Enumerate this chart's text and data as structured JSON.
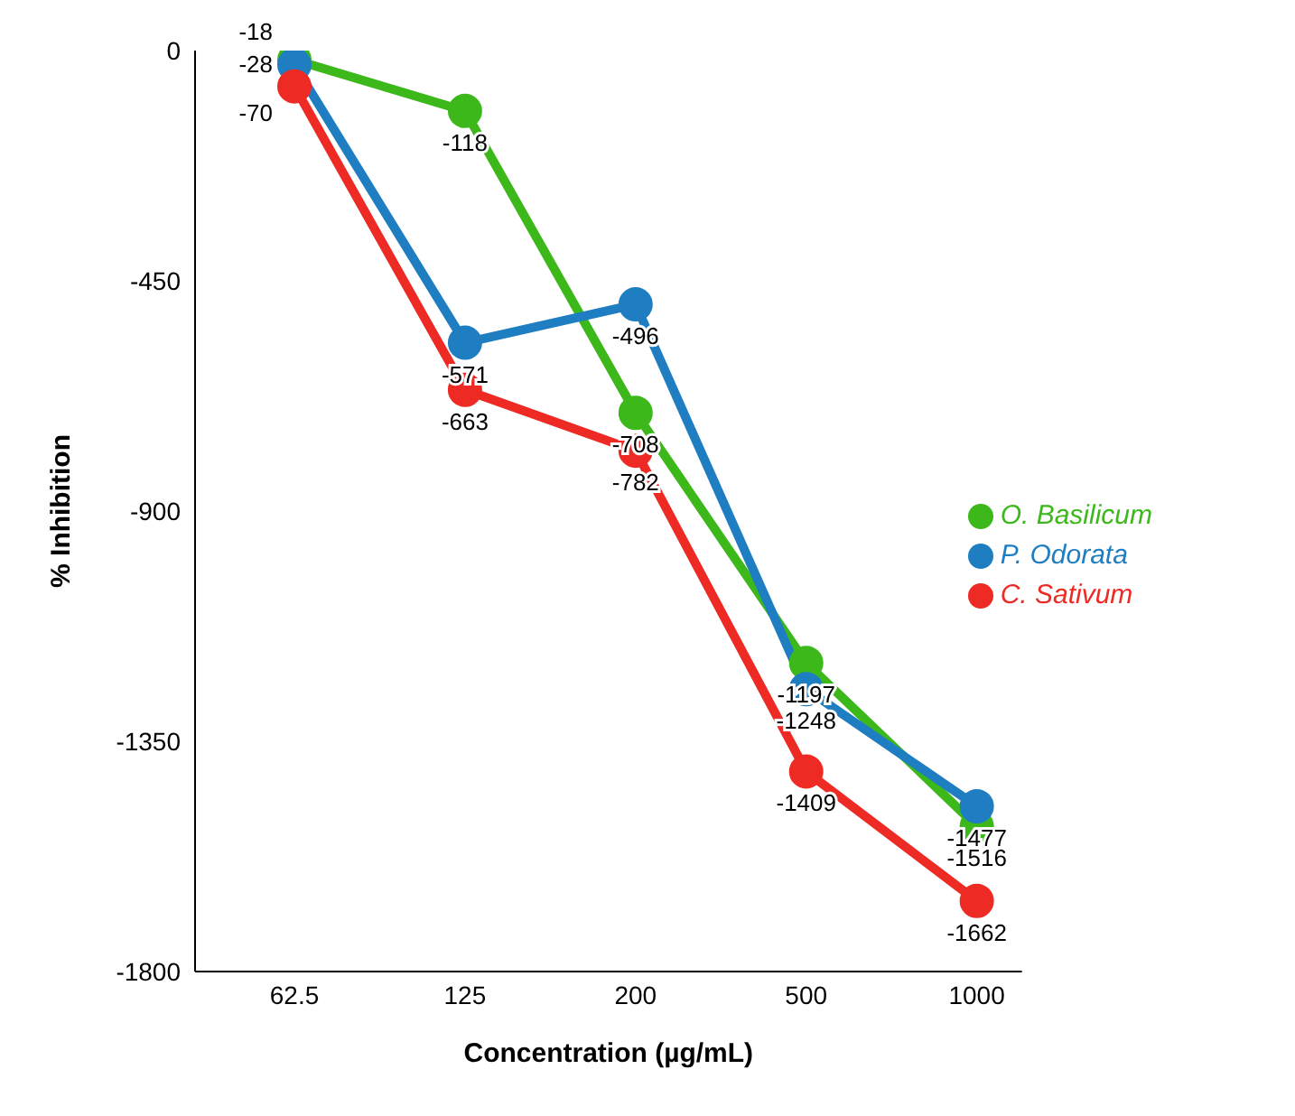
{
  "chart_data": {
    "type": "line",
    "xlabel": "Concentration (µg/mL)",
    "ylabel": "% Inhibition",
    "categories": [
      "62.5",
      "125",
      "200",
      "500",
      "1000"
    ],
    "series": [
      {
        "name": "O. Basilicum",
        "color": "#3cb81b",
        "values": [
          -18,
          -118,
          -708,
          -1197,
          -1516
        ]
      },
      {
        "name": "P. Odorata",
        "color": "#1f7ec2",
        "values": [
          -28,
          -571,
          -496,
          -1248,
          -1477
        ]
      },
      {
        "name": "C. Sativum",
        "color": "#ee2a24",
        "values": [
          -70,
          -663,
          -782,
          -1409,
          -1662
        ]
      }
    ],
    "ylim": [
      -1800,
      0
    ],
    "yticks": [
      -1800,
      -1350,
      -900,
      -450,
      0
    ],
    "grid": false,
    "legend": "right",
    "marker": "circle",
    "line_style": "solid",
    "data_labels": true
  }
}
